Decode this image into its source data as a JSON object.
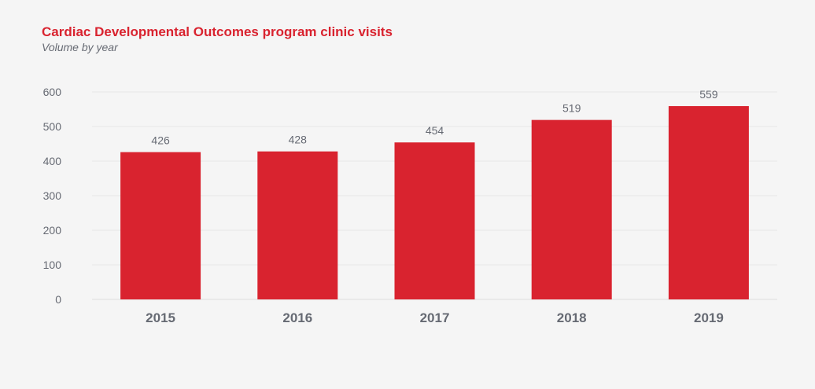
{
  "chart_data": {
    "type": "bar",
    "title": "Cardiac Developmental Outcomes program clinic visits",
    "subtitle": "Volume by year",
    "categories": [
      "2015",
      "2016",
      "2017",
      "2018",
      "2019"
    ],
    "values": [
      426,
      428,
      454,
      519,
      559
    ],
    "data_labels": [
      "426",
      "428",
      "454",
      "519",
      "559"
    ],
    "yticks": [
      "0",
      "100",
      "200",
      "300",
      "400",
      "500",
      "600"
    ],
    "ylim": [
      0,
      600
    ],
    "grid": true,
    "legend": "none",
    "colors": {
      "bar": "#d9232f",
      "title": "#d9232f",
      "text": "#666a73",
      "grid": "#e6e6e6",
      "background": "#f5f5f5"
    }
  }
}
